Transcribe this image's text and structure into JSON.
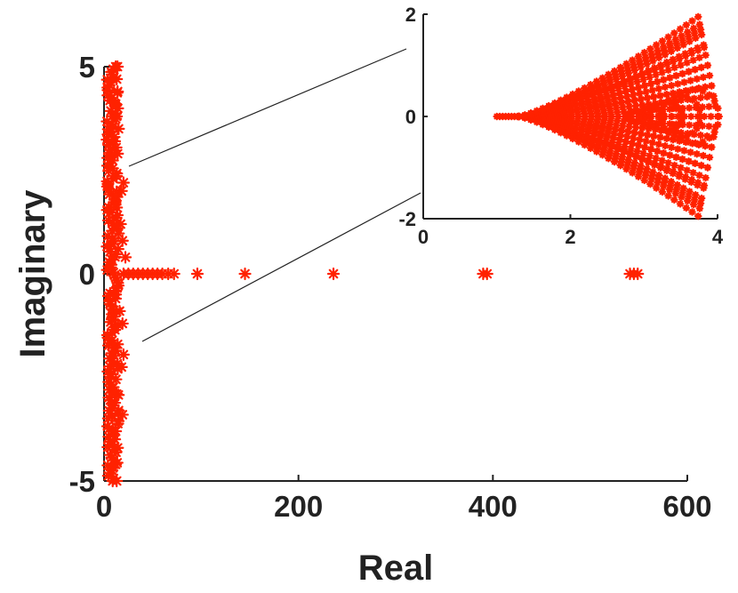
{
  "chart_data": [
    {
      "type": "scatter",
      "title": "",
      "xlabel": "Real",
      "ylabel": "Imaginary",
      "xlim": [
        0,
        600
      ],
      "ylim": [
        -5,
        5
      ],
      "x_ticks": [
        "0",
        "200",
        "400",
        "600"
      ],
      "y_ticks": [
        "-5",
        "0",
        "5"
      ],
      "grid": false,
      "marker": "asterisk",
      "color": "#ff2200",
      "series": [
        {
          "points_real_axis": [
            [
              20,
              0
            ],
            [
              25,
              0
            ],
            [
              30,
              0
            ],
            [
              35,
              0
            ],
            [
              40,
              0
            ],
            [
              45,
              0
            ],
            [
              50,
              0
            ],
            [
              55,
              0
            ],
            [
              60,
              0
            ],
            [
              66,
              0
            ],
            [
              72,
              0
            ],
            [
              96,
              0
            ],
            [
              145,
              0
            ],
            [
              236,
              0
            ],
            [
              390,
              0
            ],
            [
              394,
              0
            ],
            [
              541,
              0
            ],
            [
              545,
              0
            ],
            [
              549,
              0
            ]
          ],
          "vertical_cluster": {
            "real_range": [
              2,
              20
            ],
            "imag_range": [
              -5,
              5
            ],
            "description_points": [
              [
                12,
                5
              ],
              [
                13,
                4.7
              ],
              [
                14,
                4.4
              ],
              [
                12,
                4.1
              ],
              [
                13,
                3.8
              ],
              [
                15,
                3.5
              ],
              [
                11,
                3.2
              ],
              [
                14,
                2.9
              ],
              [
                20,
                2.2
              ],
              [
                18,
                2.0
              ],
              [
                13,
                1.6
              ],
              [
                17,
                1.2
              ],
              [
                19,
                0.8
              ],
              [
                22,
                0.4
              ],
              [
                12,
                -0.5
              ],
              [
                16,
                -0.9
              ],
              [
                19,
                -1.2
              ],
              [
                14,
                -1.7
              ],
              [
                20,
                -1.95
              ],
              [
                18,
                -2.25
              ],
              [
                13,
                -2.9
              ],
              [
                15,
                -3.3
              ],
              [
                19,
                -3.4
              ],
              [
                12,
                -3.8
              ],
              [
                14,
                -4.2
              ],
              [
                12,
                -4.6
              ],
              [
                13,
                -5
              ]
            ]
          }
        }
      ]
    },
    {
      "type": "scatter",
      "title": "",
      "xlabel": "",
      "ylabel": "",
      "xlim": [
        0,
        4
      ],
      "ylim": [
        -2,
        2
      ],
      "x_ticks": [
        "0",
        "2",
        "4"
      ],
      "y_ticks": [
        "-2",
        "0",
        "2"
      ],
      "grid": false,
      "marker": "asterisk",
      "color": "#ff2200",
      "series": [
        {
          "real_axis_start": 1.0,
          "fan_start": 1.3,
          "fan_end": 4.0,
          "outer_branch_imag_at_end": [
            1.95,
            -1.95
          ],
          "inner_branch_imag_at_end": [
            1.7,
            1.35,
            1.0,
            0.6,
            -0.6,
            -1.0,
            -1.35,
            -1.7
          ],
          "loop_centers": [
            2.9,
            3.1,
            3.3,
            3.5,
            3.7
          ],
          "loop_half_heights": [
            0.1,
            0.18,
            0.28,
            0.4,
            0.52
          ]
        }
      ]
    }
  ]
}
